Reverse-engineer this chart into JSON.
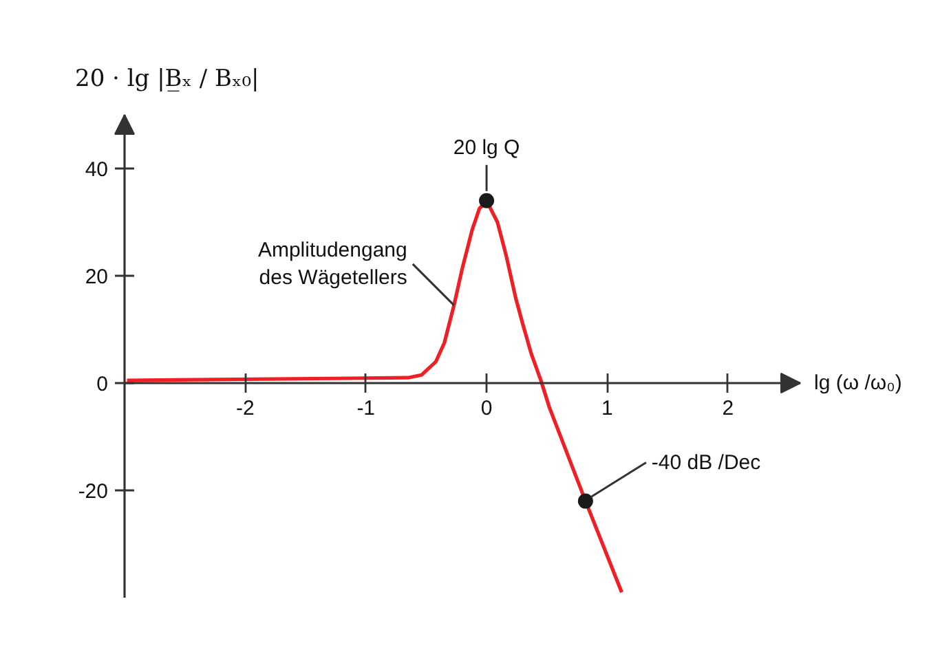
{
  "chart_data": {
    "type": "line",
    "xlabel": "lg (ω /ω₀)",
    "ylabel": "20 · lg |B̲ₓ / Bₓ₀|",
    "xlim": [
      -3,
      2.6
    ],
    "ylim": [
      -40,
      50
    ],
    "xticks": [
      -2,
      -1,
      0,
      1,
      2
    ],
    "yticks": [
      -20,
      0,
      20,
      40
    ],
    "series": [
      {
        "color": "#ee2026",
        "x": [
          -2.98,
          -0.65,
          -0.54,
          -0.42,
          -0.35,
          -0.27,
          -0.2,
          -0.12,
          -0.06,
          0,
          0.09,
          0.16,
          0.24,
          0.3,
          0.37,
          0.45,
          0.52,
          0.82,
          1.12
        ],
        "values": [
          0.5,
          1,
          1.5,
          4,
          7.5,
          14.5,
          21.5,
          28.5,
          32.5,
          34,
          30,
          24,
          16,
          11,
          5.5,
          0.5,
          -4.5,
          -22,
          -39
        ]
      },
      {
        "type": "scatter",
        "color": "#1a1a1a",
        "marker": "circle",
        "x": [
          0,
          0.82
        ],
        "values": [
          34,
          -22
        ]
      }
    ],
    "annotations": [
      {
        "text": "20 lg Q",
        "x": 0,
        "y": 34
      },
      {
        "text": "Amplitudengang\ndes Wägetellers",
        "x": -0.27,
        "y": 14.5
      },
      {
        "text": "-40 dB /Dec",
        "x": 0.82,
        "y": -22
      }
    ]
  }
}
